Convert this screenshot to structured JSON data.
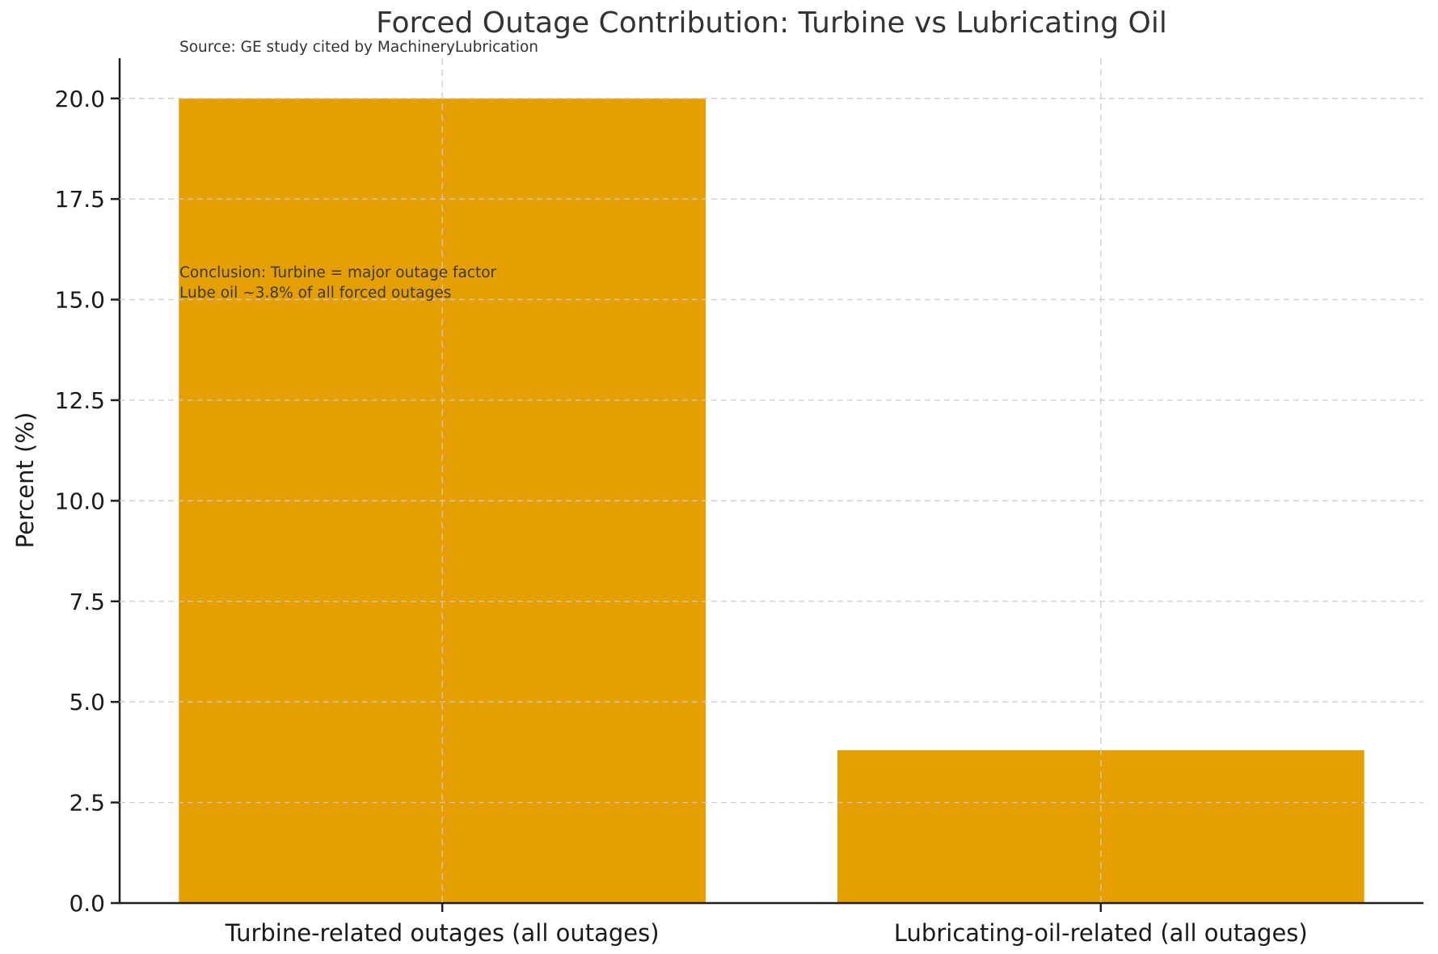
{
  "chart_data": {
    "type": "bar",
    "title": "Forced Outage Contribution: Turbine vs Lubricating Oil",
    "source_note": "Source: GE study cited by MachineryLubrication",
    "xlabel": "",
    "ylabel": "Percent (%)",
    "categories": [
      "Turbine-related outages (all outages)",
      "Lubricating-oil-related (all outages)"
    ],
    "values": [
      20.0,
      3.8
    ],
    "x_positions": [
      0,
      1
    ],
    "bar_width": 0.8,
    "xlim": [
      -0.49,
      1.49
    ],
    "ylim": [
      0,
      21
    ],
    "yticks": [
      0.0,
      2.5,
      5.0,
      7.5,
      10.0,
      12.5,
      15.0,
      17.5,
      20.0
    ],
    "ytick_labels": [
      "0.0",
      "2.5",
      "5.0",
      "7.5",
      "10.0",
      "12.5",
      "15.0",
      "17.5",
      "20.0"
    ],
    "grid": "dashed gridlines on both axes, drawn above bars",
    "legend": "none",
    "annotation": {
      "line1": "Conclusion: Turbine = major outage factor",
      "line2": "Lube oil ~3.8% of all forced outages"
    }
  },
  "style": {
    "bar_color": "#E69F00",
    "grid_color": "#cccccc",
    "grid_opacity": 0.9,
    "spine_color": "#1f1f1f",
    "tick_label_color": "#1a1a1a",
    "title_color": "#333333",
    "annotation_color": "#3a3a3a",
    "background_color": "#ffffff"
  }
}
